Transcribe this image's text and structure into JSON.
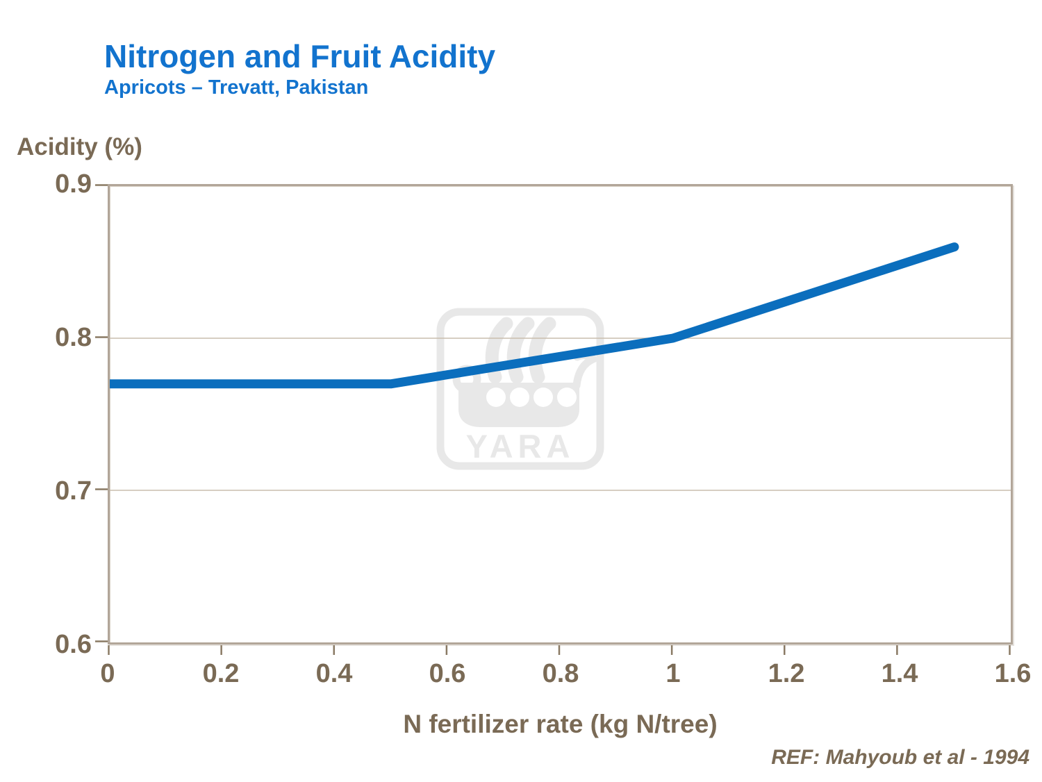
{
  "header": {
    "title": "Nitrogen and Fruit Acidity",
    "subtitle": "Apricots – Trevatt, Pakistan"
  },
  "chart_data": {
    "type": "line",
    "title": "Nitrogen and Fruit Acidity",
    "subtitle": "Apricots – Trevatt, Pakistan",
    "xlabel": "N fertilizer rate (kg N/tree)",
    "ylabel": "Acidity (%)",
    "series": [
      {
        "name": "Acidity",
        "x": [
          0,
          0.5,
          1,
          1.5
        ],
        "values": [
          0.77,
          0.77,
          0.8,
          0.86
        ]
      }
    ],
    "xlim": [
      0,
      1.6
    ],
    "ylim": [
      0.6,
      0.9
    ],
    "xticks": [
      "0",
      "0.2",
      "0.4",
      "0.6",
      "0.8",
      "1",
      "1.2",
      "1.4",
      "1.6"
    ],
    "xtick_values": [
      0,
      0.2,
      0.4,
      0.6,
      0.8,
      1,
      1.2,
      1.4,
      1.6
    ],
    "yticks": [
      "0.9",
      "0.8",
      "0.7",
      "0.6"
    ],
    "ytick_values": [
      0.9,
      0.8,
      0.7,
      0.6
    ],
    "grid": "horizontal-major-only",
    "legend": "none",
    "line_color": "#0b6ebd",
    "line_width": 13
  },
  "watermark": {
    "text": "YARA",
    "icon": "viking-ship-logo"
  },
  "footer": {
    "reference": "REF: Mahyoub et al - 1994"
  },
  "colors": {
    "title_blue": "#1273ce",
    "line_blue": "#0b6ebd",
    "text_brown": "#7a6a55",
    "axis_frame_tan": "#b2a699",
    "gridline_tan": "#c9bdae",
    "tick_brown": "#8a7a64",
    "watermark_gray": "#e8e8e8",
    "background": "#ffffff"
  }
}
